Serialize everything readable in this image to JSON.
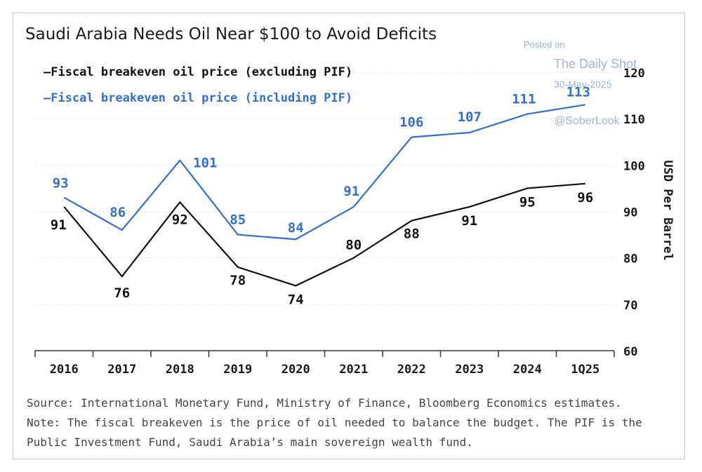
{
  "chart_data": {
    "type": "line",
    "title": "Saudi Arabia Needs Oil Near $100 to Avoid Deficits",
    "categories": [
      "2016",
      "2017",
      "2018",
      "2019",
      "2020",
      "2021",
      "2022",
      "2023",
      "2024",
      "1Q25"
    ],
    "series": [
      {
        "name": "Fiscal breakeven oil price (excluding PIF)",
        "legend_label": "—Fiscal breakeven oil price (excluding PIF)",
        "color": "#111111",
        "values": [
          91,
          76,
          92,
          78,
          74,
          80,
          88,
          91,
          95,
          96
        ]
      },
      {
        "name": "Fiscal breakeven oil price (including PIF)",
        "legend_label": "—Fiscal breakeven oil price (including PIF)",
        "color": "#2f6fd6",
        "values": [
          93,
          86,
          101,
          85,
          84,
          91,
          106,
          107,
          111,
          113
        ]
      }
    ],
    "ylabel": "USD Per Barrel",
    "ylim": [
      60,
      120
    ],
    "yticks": [
      60,
      70,
      80,
      90,
      100,
      110,
      120
    ],
    "legend_position": "top-left",
    "grid": true
  },
  "watermark": {
    "line1": "Posted on",
    "line2": "The Daily Shot",
    "line3": "30-May-2025",
    "line4": "@SoberLook"
  },
  "footer": {
    "line1": "Source: International Monetary Fund, Ministry of Finance, Bloomberg Economics estimates.",
    "line2": "Note: The fiscal breakeven is the price of oil needed to balance the budget. The PIF is the",
    "line3": "Public Investment Fund, Saudi Arabia’s main sovereign wealth fund."
  }
}
